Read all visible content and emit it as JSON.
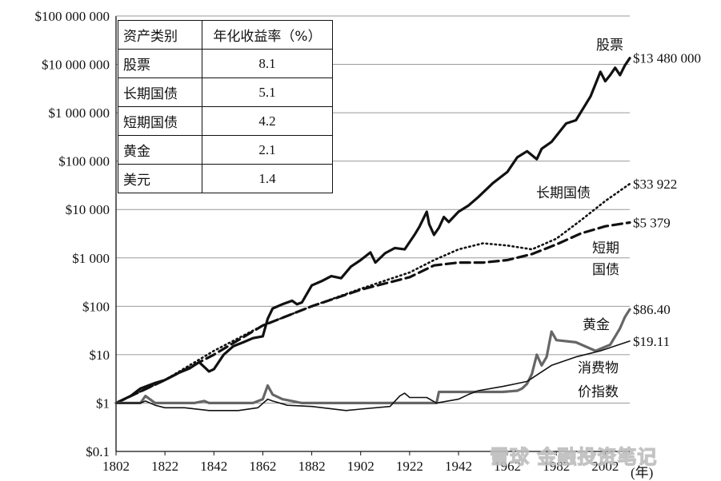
{
  "chart_data": {
    "type": "line",
    "xlabel": "(年)",
    "ylabel": "",
    "xlim": [
      1802,
      2012
    ],
    "ylim": [
      0.1,
      100000000
    ],
    "yscale": "log",
    "grid": "horizontal",
    "x_ticks": [
      "1802",
      "1822",
      "1842",
      "1862",
      "1882",
      "1902",
      "1922",
      "1942",
      "1962",
      "1982",
      "2002"
    ],
    "y_ticks": [
      "$0.1",
      "$1",
      "$10",
      "$100",
      "$1 000",
      "$10 000",
      "$100 000",
      "$1 000 000",
      "$10 000 000",
      "$100 000 000"
    ],
    "series": [
      {
        "name": "股票",
        "style": "thick",
        "color": "#111111",
        "end_label": "$13 480 000",
        "x": [
          1802,
          1808,
          1812,
          1818,
          1822,
          1828,
          1832,
          1836,
          1840,
          1842,
          1846,
          1850,
          1854,
          1858,
          1862,
          1864,
          1866,
          1870,
          1874,
          1876,
          1878,
          1882,
          1886,
          1890,
          1894,
          1898,
          1902,
          1906,
          1908,
          1912,
          1916,
          1920,
          1924,
          1926,
          1929,
          1930,
          1932,
          1934,
          1936,
          1938,
          1942,
          1946,
          1950,
          1956,
          1962,
          1966,
          1970,
          1974,
          1976,
          1980,
          1986,
          1990,
          1994,
          1996,
          2000,
          2002,
          2004,
          2006,
          2008,
          2010,
          2012
        ],
        "y": [
          1,
          1.4,
          2,
          2.6,
          3,
          4.3,
          5.2,
          7,
          4.5,
          5,
          10,
          15,
          18,
          22,
          24,
          55,
          90,
          110,
          130,
          110,
          120,
          270,
          330,
          420,
          380,
          660,
          900,
          1300,
          800,
          1250,
          1600,
          1500,
          3000,
          4400,
          9000,
          5000,
          3000,
          4200,
          7000,
          5500,
          9000,
          12000,
          18000,
          35000,
          60000,
          120000,
          160000,
          110000,
          180000,
          250000,
          600000,
          700000,
          1500000,
          2200000,
          7000000,
          4500000,
          6000000,
          8500000,
          6000000,
          9500000,
          13480000
        ]
      },
      {
        "name": "长期国债",
        "style": "dotted",
        "color": "#111111",
        "end_label": "$33 922",
        "x": [
          1802,
          1822,
          1842,
          1862,
          1882,
          1902,
          1922,
          1932,
          1942,
          1952,
          1962,
          1972,
          1982,
          1992,
          2002,
          2012
        ],
        "y": [
          1,
          3,
          12,
          40,
          100,
          230,
          500,
          900,
          1500,
          2000,
          1800,
          1500,
          2500,
          6000,
          15000,
          33922
        ]
      },
      {
        "name": "短期国债",
        "style": "dashed",
        "color": "#111111",
        "end_label": "$5 379",
        "x": [
          1802,
          1822,
          1842,
          1862,
          1882,
          1902,
          1922,
          1932,
          1942,
          1952,
          1962,
          1972,
          1982,
          1992,
          2002,
          2012
        ],
        "y": [
          1,
          3,
          10,
          40,
          100,
          220,
          400,
          700,
          800,
          800,
          900,
          1200,
          1900,
          3200,
          4500,
          5379
        ]
      },
      {
        "name": "黄金",
        "style": "thick",
        "color": "#666666",
        "end_label": "$86.40",
        "x": [
          1802,
          1812,
          1814,
          1818,
          1822,
          1834,
          1838,
          1840,
          1842,
          1858,
          1862,
          1864,
          1866,
          1870,
          1878,
          1880,
          1900,
          1933,
          1934,
          1960,
          1966,
          1968,
          1970,
          1972,
          1974,
          1976,
          1978,
          1980,
          1982,
          1990,
          1998,
          2004,
          2008,
          2010,
          2012
        ],
        "y": [
          1,
          1,
          1.4,
          1,
          1,
          1,
          1.1,
          1,
          1,
          1,
          1.2,
          2.3,
          1.5,
          1.2,
          1,
          1,
          1,
          1,
          1.7,
          1.7,
          1.8,
          2,
          2.5,
          4,
          10,
          6,
          9,
          30,
          20,
          18,
          12,
          16,
          35,
          60,
          86.4
        ]
      },
      {
        "name": "消费物价指数",
        "style": "thin",
        "color": "#111111",
        "end_label": "$19.11",
        "x": [
          1802,
          1812,
          1814,
          1818,
          1822,
          1830,
          1840,
          1852,
          1860,
          1864,
          1866,
          1872,
          1882,
          1896,
          1902,
          1914,
          1918,
          1920,
          1922,
          1929,
          1933,
          1942,
          1946,
          1950,
          1960,
          1970,
          1980,
          1990,
          2000,
          2012
        ],
        "y": [
          1,
          1,
          1.1,
          0.9,
          0.8,
          0.8,
          0.7,
          0.7,
          0.8,
          1.2,
          1.1,
          0.9,
          0.85,
          0.7,
          0.75,
          0.85,
          1.4,
          1.6,
          1.3,
          1.3,
          1,
          1.2,
          1.5,
          1.8,
          2.2,
          2.8,
          6,
          9,
          12,
          19.11
        ]
      }
    ],
    "series_labels": {
      "stocks": "股票",
      "bonds": "长期国债",
      "bills_line1": "短期",
      "bills_line2": "国债",
      "gold": "黄金",
      "cpi_line1": "消费物",
      "cpi_line2": "价指数"
    },
    "table": {
      "headers": [
        "资产类别",
        "年化收益率（%）"
      ],
      "rows": [
        [
          "股票",
          "8.1"
        ],
        [
          "长期国债",
          "5.1"
        ],
        [
          "短期国债",
          "4.2"
        ],
        [
          "黄金",
          "2.1"
        ],
        [
          "美元",
          "1.4"
        ]
      ]
    }
  },
  "watermark": "雪球 金融投资笔记"
}
